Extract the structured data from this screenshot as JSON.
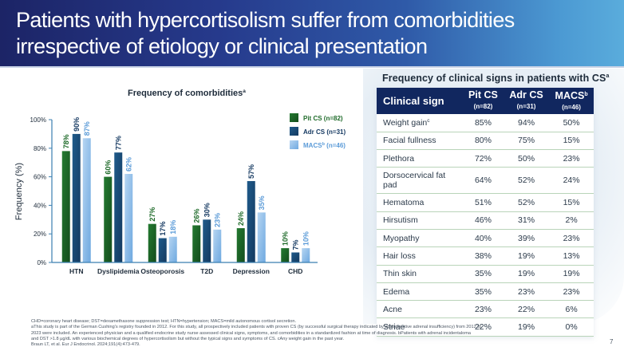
{
  "slide": {
    "title_line1": "Patients with hypercortisolism suffer from comorbidities",
    "title_line2": "irrespective of etiology or clinical presentation",
    "page_number": "7"
  },
  "colors": {
    "pit_cs": "#1f6b2a",
    "adr_cs": "#1a4d7a",
    "macs": "#9ec5ea",
    "header_dark": "#1c2466",
    "header_light": "#5aacdc",
    "table_header": "#11275f",
    "row_rule": "#b9d4b9"
  },
  "chart_data": {
    "type": "bar",
    "title": "Frequency of comorbidities",
    "title_superscript": "a",
    "xlabel": "",
    "ylabel": "Frequency (%)",
    "ylim": [
      0,
      100
    ],
    "yticks": [
      "0%",
      "20%",
      "40%",
      "60%",
      "80%",
      "100%"
    ],
    "ytick_values": [
      0,
      20,
      40,
      60,
      80,
      100
    ],
    "grid": false,
    "legend_position": "top-right",
    "categories": [
      "HTN",
      "Dyslipidemia",
      "Osteoporosis",
      "T2D",
      "Depression",
      "CHD"
    ],
    "series": [
      {
        "name": "Pit CS (n=82)",
        "name_main": "Pit CS",
        "name_sup": "",
        "name_n": " (n=82)",
        "values": [
          78,
          60,
          27,
          26,
          24,
          10
        ],
        "labels": [
          "78%",
          "60%",
          "27%",
          "26%",
          "24%",
          "10%"
        ]
      },
      {
        "name": "Adr CS (n=31)",
        "name_main": "Adr CS",
        "name_sup": "",
        "name_n": " (n=31)",
        "values": [
          90,
          77,
          17,
          30,
          57,
          7
        ],
        "labels": [
          "90%",
          "77%",
          "17%",
          "30%",
          "57%",
          "7%"
        ]
      },
      {
        "name": "MACSb (n=46)",
        "name_main": "MACS",
        "name_sup": "b",
        "name_n": " (n=46)",
        "values": [
          87,
          62,
          18,
          23,
          35,
          10
        ],
        "labels": [
          "87%",
          "62%",
          "18%",
          "23%",
          "35%",
          "10%"
        ]
      }
    ]
  },
  "table": {
    "title": "Frequency of clinical signs in patients with CS",
    "title_superscript": "a",
    "headers": [
      {
        "main": "Clinical sign",
        "sup": "",
        "sub": ""
      },
      {
        "main": "Pit CS",
        "sup": "",
        "sub": "(n=82)"
      },
      {
        "main": "Adr CS",
        "sup": "",
        "sub": "(n=31)"
      },
      {
        "main": "MACS",
        "sup": "b",
        "sub": "(n=46)"
      }
    ],
    "rows": [
      {
        "sign": "Weight gain",
        "sup": "c",
        "pit": "85%",
        "adr": "94%",
        "macs": "50%"
      },
      {
        "sign": "Facial fullness",
        "sup": "",
        "pit": "80%",
        "adr": "75%",
        "macs": "15%"
      },
      {
        "sign": "Plethora",
        "sup": "",
        "pit": "72%",
        "adr": "50%",
        "macs": "23%"
      },
      {
        "sign": "Dorsocervical fat pad",
        "sup": "",
        "pit": "64%",
        "adr": "52%",
        "macs": "24%"
      },
      {
        "sign": "Hematoma",
        "sup": "",
        "pit": "51%",
        "adr": "52%",
        "macs": "15%"
      },
      {
        "sign": "Hirsutism",
        "sup": "",
        "pit": "46%",
        "adr": "31%",
        "macs": "2%"
      },
      {
        "sign": "Myopathy",
        "sup": "",
        "pit": "40%",
        "adr": "39%",
        "macs": "23%"
      },
      {
        "sign": "Hair loss",
        "sup": "",
        "pit": "38%",
        "adr": "19%",
        "macs": "13%"
      },
      {
        "sign": "Thin skin",
        "sup": "",
        "pit": "35%",
        "adr": "19%",
        "macs": "19%"
      },
      {
        "sign": "Edema",
        "sup": "",
        "pit": "35%",
        "adr": "23%",
        "macs": "23%"
      },
      {
        "sign": "Acne",
        "sup": "",
        "pit": "23%",
        "adr": "22%",
        "macs": "6%"
      },
      {
        "sign": "Striae",
        "sup": "",
        "pit": "22%",
        "adr": "19%",
        "macs": "0%"
      }
    ]
  },
  "footnotes": [
    "CHD=coronary heart disease; DST=dexamethasone suppression test; HTN=hypertension; MACS=mild autonomous cortisol secretion.",
    "aThis study is part of the German Cushing's registry founded in 2012. For this study, all prospectively included patients with proven CS (by successful surgical therapy indicated by postoperative adrenal insufficiency) from 2012 to",
    "2023 were included. An experienced physician and a qualified endocrine study nurse assessed clinical signs, symptoms, and comorbidities in a standardized fashion at time of diagnosis. bPatients with adrenal incidentaloma",
    "and DST >1.8 µg/dL with various biochemical degrees of hypercortisolism but without the typical signs and symptoms of CS. cAny weight gain in the past year.",
    "Braun LT, et al. Eur J Endocrinol. 2024;191(4):473-479."
  ]
}
